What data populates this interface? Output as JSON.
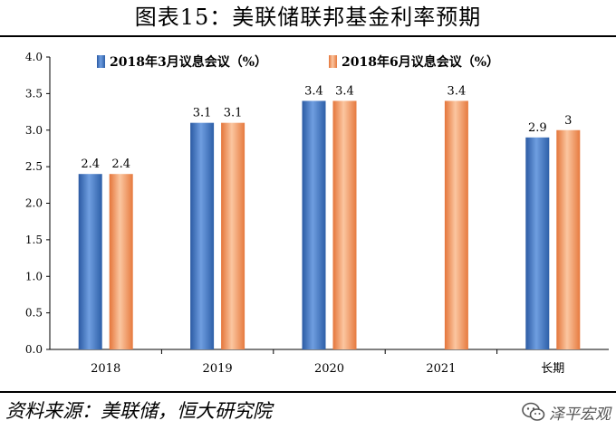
{
  "title": "图表15：美联储联邦基金利率预期",
  "source": "资料来源：美联储，恒大研究院",
  "brand": {
    "label": "泽平宏观",
    "icon": "wechat-logo-icon"
  },
  "colors": {
    "series_a": "#3f75c3",
    "series_b": "#f08a4b"
  },
  "chart_data": {
    "type": "bar",
    "categories": [
      "2018",
      "2019",
      "2020",
      "2021",
      "长期"
    ],
    "series": [
      {
        "name": "2018年3月议息会议（%）",
        "values": [
          2.4,
          3.1,
          3.4,
          null,
          2.9
        ],
        "labels": [
          "2.4",
          "3.1",
          "3.4",
          "",
          "2.9"
        ]
      },
      {
        "name": "2018年6月议息会议（%）",
        "values": [
          2.4,
          3.1,
          3.4,
          3.4,
          3.0
        ],
        "labels": [
          "2.4",
          "3.1",
          "3.4",
          "3.4",
          "3"
        ]
      }
    ],
    "ylim": [
      0,
      4.0
    ],
    "yticks": [
      "0.0",
      "0.5",
      "1.0",
      "1.5",
      "2.0",
      "2.5",
      "3.0",
      "3.5",
      "4.0"
    ],
    "legend": "top",
    "grid": false
  }
}
